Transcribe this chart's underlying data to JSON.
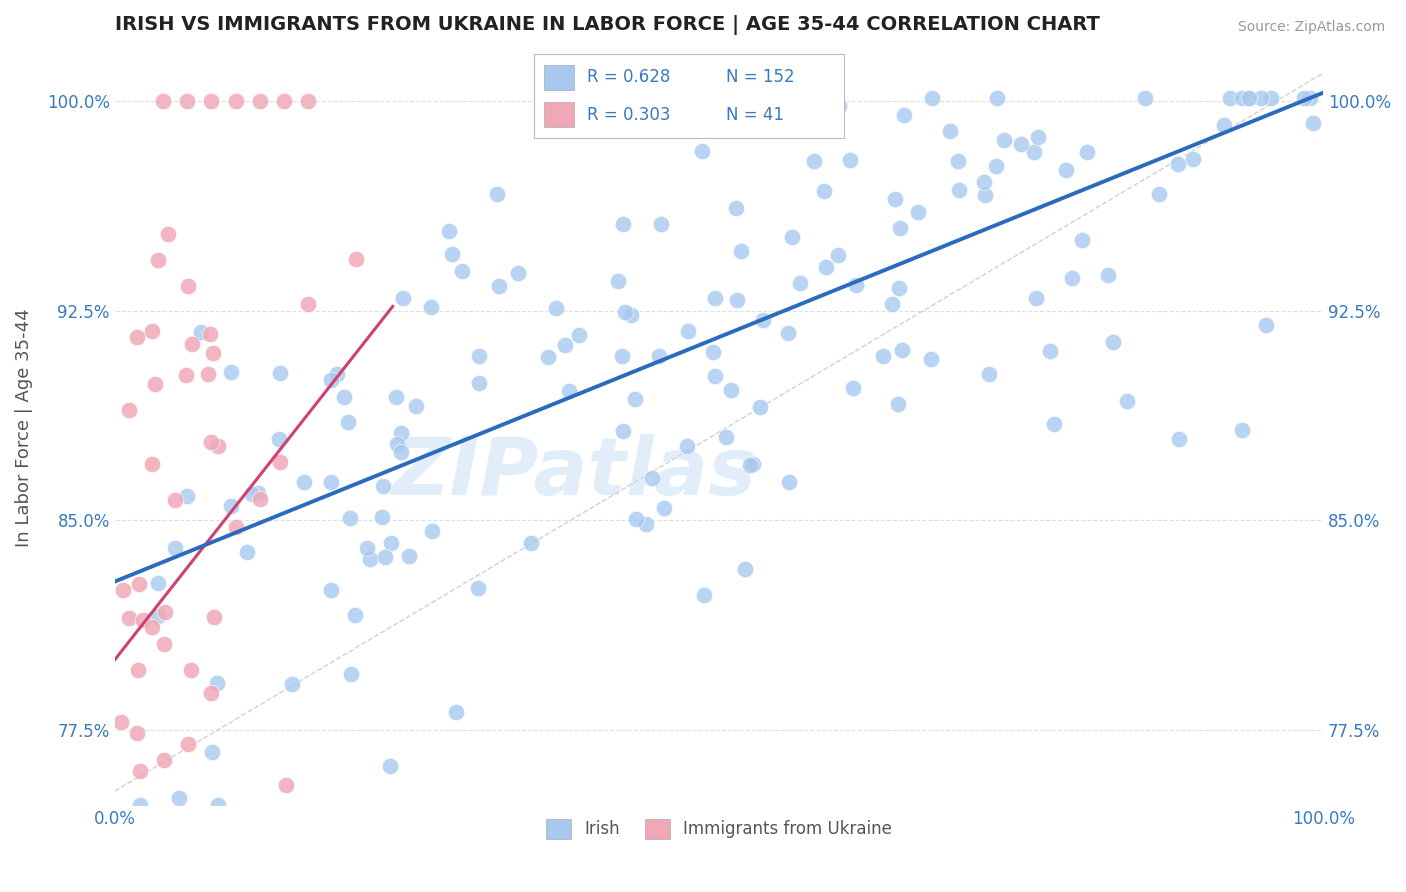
{
  "title": "IRISH VS IMMIGRANTS FROM UKRAINE IN LABOR FORCE | AGE 35-44 CORRELATION CHART",
  "source": "Source: ZipAtlas.com",
  "ylabel": "In Labor Force | Age 35-44",
  "x_min": 0.0,
  "x_max": 1.0,
  "y_min": 0.748,
  "y_max": 1.018,
  "y_ticks": [
    0.775,
    0.85,
    0.925,
    1.0
  ],
  "y_tick_labels": [
    "77.5%",
    "85.0%",
    "92.5%",
    "100.0%"
  ],
  "irish_color": "#a8c8f0",
  "ireland_edge": "white",
  "ukraine_color": "#f0a8b8",
  "ukraine_edge": "white",
  "irish_R": 0.628,
  "irish_N": 152,
  "ukraine_R": 0.303,
  "ukraine_N": 41,
  "irish_line_color": "#2a6abf",
  "ukraine_line_color": "#d04070",
  "ref_line_color": "#cccccc",
  "watermark": "ZIPatlas",
  "legend_irish_label": "Irish",
  "legend_ukraine_label": "Immigrants from Ukraine",
  "background_color": "#ffffff",
  "grid_color": "#d8d8d8",
  "title_color": "#222222",
  "axis_label_color": "#555555",
  "tick_color": "#3a7abf",
  "legend_text_color": "#3a7abf"
}
